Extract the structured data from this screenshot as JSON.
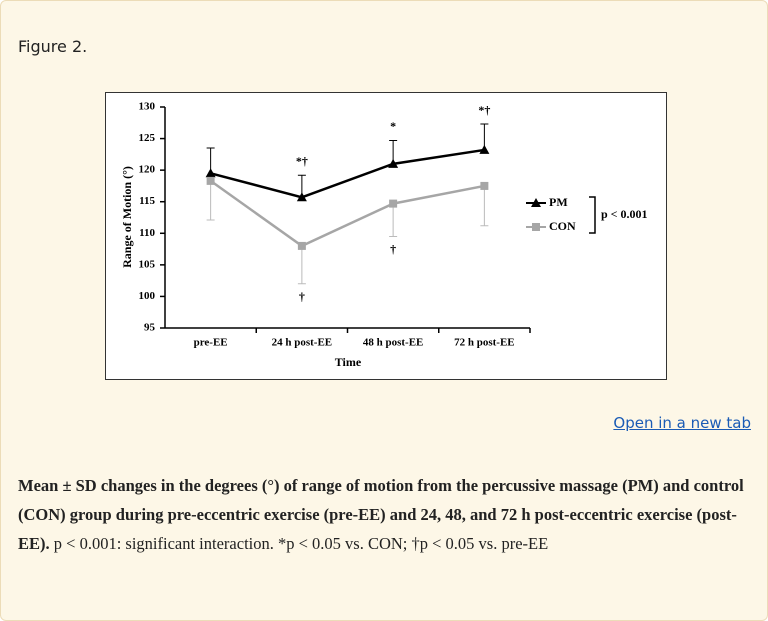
{
  "figure_label": "Figure 2.",
  "chart_data": {
    "type": "line",
    "x_label": "Time",
    "y_label": "Range of Motion (°)",
    "categories": [
      "pre-EE",
      "24 h post-EE",
      "48 h post-EE",
      "72 h post-EE"
    ],
    "series": [
      {
        "name": "PM",
        "color": "#000000",
        "marker": "triangle",
        "error_direction": "up",
        "values": [
          119.5,
          115.7,
          121.0,
          123.2
        ],
        "errors": [
          4.0,
          3.5,
          3.7,
          4.1
        ],
        "annotations": [
          null,
          "*†",
          "*",
          "*†"
        ]
      },
      {
        "name": "CON",
        "color": "#a6a6a6",
        "marker": "square",
        "error_direction": "down",
        "values": [
          118.3,
          108.0,
          114.7,
          117.5
        ],
        "errors": [
          6.2,
          6.0,
          5.2,
          6.3
        ],
        "annotations": [
          null,
          "†",
          "†",
          null
        ]
      }
    ],
    "legend_note": "p < 0.001",
    "ylim": [
      95,
      130
    ],
    "yticks": [
      95,
      100,
      105,
      110,
      115,
      120,
      125,
      130
    ],
    "grid": false
  },
  "link": "Open in a new tab",
  "caption": {
    "bold": "Mean ± SD changes in the degrees (°) of range of motion from the percussive massage (PM) and control (CON) group during pre-eccentric exercise (pre-EE) and 24, 48, and 72 h post-eccentric exercise (post-EE).",
    "text": " p < 0.001: significant interaction. *p < 0.05 vs. CON; †p < 0.05 vs. pre-EE"
  }
}
